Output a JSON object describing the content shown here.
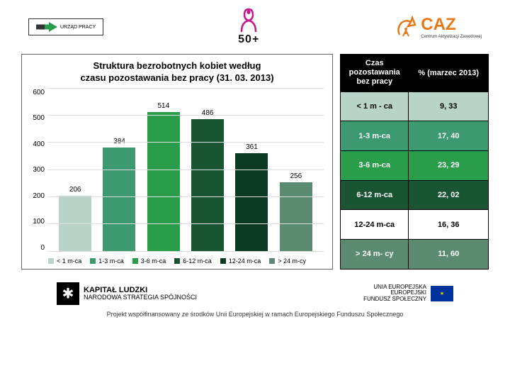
{
  "logos": {
    "left_label": "URZĄD PRACY",
    "mid_number": "50+",
    "caz_name": "CAZ",
    "caz_sub": "Centrum Aktywizacji Zawodowej"
  },
  "chart": {
    "type": "bar",
    "title_line1": "Struktura bezrobotnych kobiet według",
    "title_line2": "czasu pozostawania bez pracy (31. 03. 2013)",
    "ylim": [
      0,
      600
    ],
    "ytick_step": 100,
    "yticks": [
      "600",
      "500",
      "400",
      "300",
      "200",
      "100",
      "0"
    ],
    "categories": [
      "< 1 m-ca",
      "1-3 m-ca",
      "3-6 m-ca",
      "6-12 m-ca",
      "12-24 m-ca",
      "> 24 m-cy"
    ],
    "values": [
      206,
      384,
      514,
      486,
      361,
      256
    ],
    "bar_colors": [
      "#b8d4c7",
      "#3d9970",
      "#2a9d4a",
      "#1a5533",
      "#0c3a22",
      "#5a8a6f"
    ],
    "background_color": "#ffffff",
    "grid_color": "#dddddd",
    "title_fontsize": 13,
    "value_fontsize": 10,
    "tick_fontsize": 10
  },
  "table": {
    "col1_header": "Czas\npozostawania\nbez pracy",
    "col2_header": "% (marzec 2013)",
    "rows": [
      {
        "label": "< 1 m - ca",
        "value": "9, 33",
        "bg": "#b8d4c7"
      },
      {
        "label": "1-3 m-ca",
        "value": "17, 40",
        "bg": "#3d9970"
      },
      {
        "label": "3-6 m-ca",
        "value": "23, 29",
        "bg": "#2a9d4a"
      },
      {
        "label": "6-12 m-ca",
        "value": "22, 02",
        "bg": "#1a5533"
      },
      {
        "label": "12-24 m-ca",
        "value": "16, 36",
        "bg": "#ffffff"
      },
      {
        "label": "> 24 m- cy",
        "value": "11, 60",
        "bg": "#5a8a6f"
      }
    ],
    "text_colors": [
      "#000",
      "#fff",
      "#fff",
      "#fff",
      "#000",
      "#fff"
    ]
  },
  "footer": {
    "kapital_bold": "KAPITAŁ LUDZKI",
    "kapital_sub": "NARODOWA STRATEGIA SPÓJNOŚCI",
    "eu_line1": "UNIA EUROPEJSKA",
    "eu_line2": "EUROPEJSKI",
    "eu_line3": "FUNDUSZ SPOŁECZNY",
    "bottom_text": "Projekt współfinansowany ze środków Unii Europejskiej w ramach Europejskiego Funduszu Społecznego"
  }
}
